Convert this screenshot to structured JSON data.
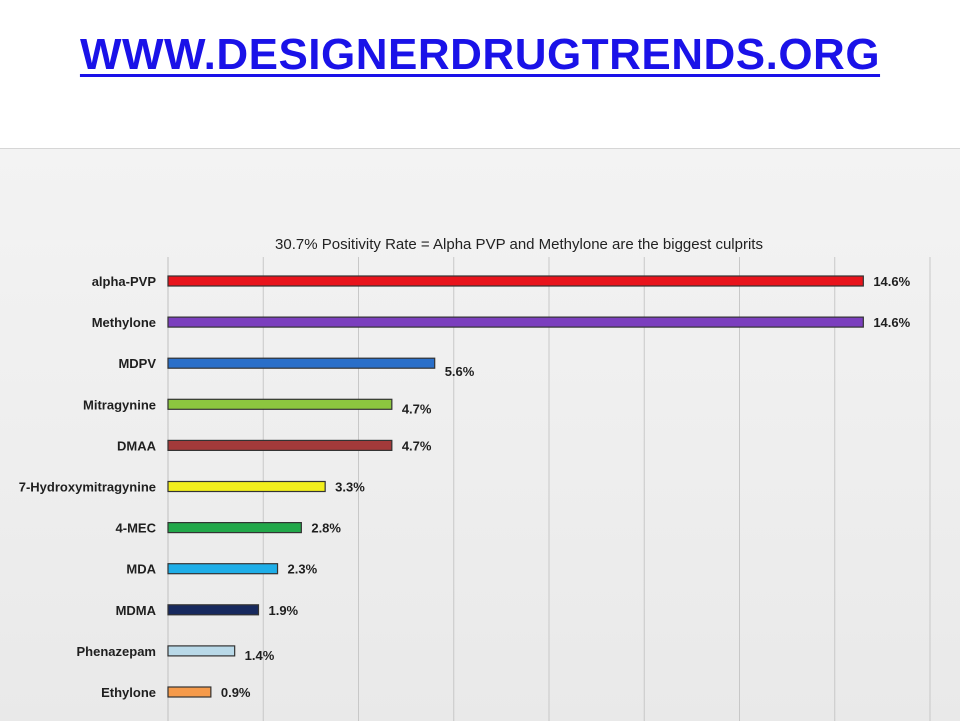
{
  "header": {
    "site_link": "WWW.DESIGNERDRUGTRENDS.ORG"
  },
  "colors": {
    "link": "#1a12e8",
    "gridline": "#c8c8c8",
    "bar_outline": "#333333"
  },
  "chart_data": {
    "type": "bar",
    "orientation": "horizontal",
    "title": "30.7% Positivity Rate = Alpha PVP and Methylone are the biggest culprits",
    "xlabel": "",
    "ylabel": "",
    "xlim": [
      0,
      16
    ],
    "grid": true,
    "legend": "none",
    "value_suffix": "%",
    "categories": [
      "alpha-PVP",
      "Methylone",
      "MDPV",
      "Mitragynine",
      "DMAA",
      "7-Hydroxymitragynine",
      "4-MEC",
      "MDA",
      "MDMA",
      "Phenazepam",
      "Ethylone"
    ],
    "values": [
      14.6,
      14.6,
      5.6,
      4.7,
      4.7,
      3.3,
      2.8,
      2.3,
      1.9,
      1.4,
      0.9
    ],
    "labels": [
      "14.6%",
      "14.6%",
      "5.6%",
      "4.7%",
      "4.7%",
      "3.3%",
      "2.8%",
      "2.3%",
      "1.9%",
      "1.4%",
      "0.9%"
    ],
    "bar_colors": [
      "#e8141c",
      "#7b3fbe",
      "#2a6fc9",
      "#8cc63f",
      "#a33a3a",
      "#f2ee1c",
      "#22a84a",
      "#1eaee8",
      "#17295e",
      "#b9d9e8",
      "#f59a4a"
    ]
  }
}
